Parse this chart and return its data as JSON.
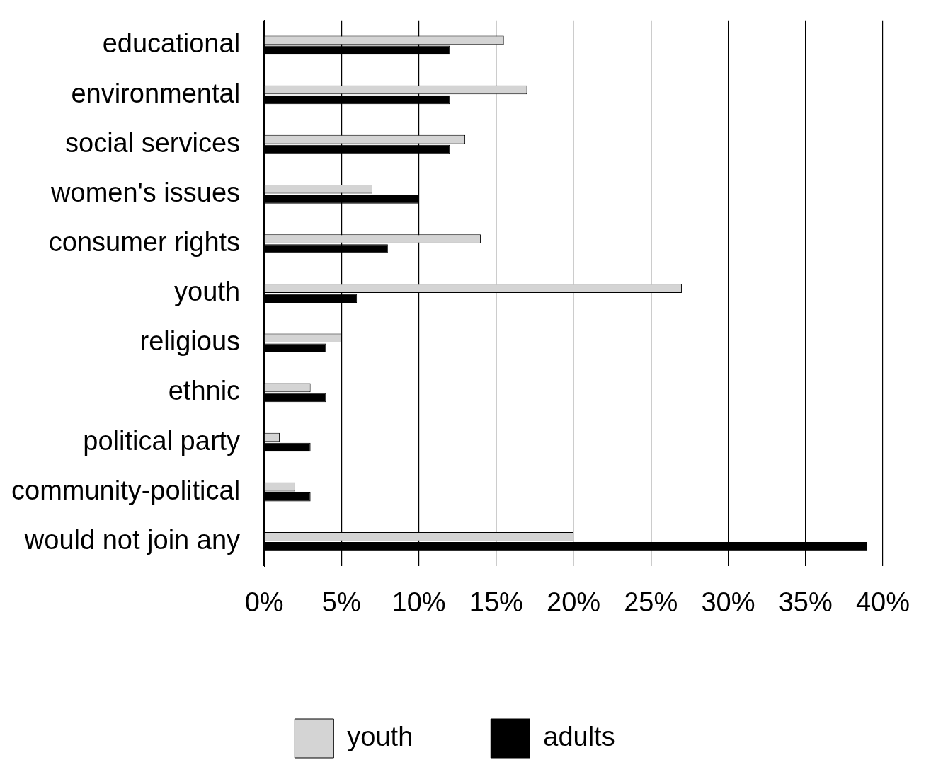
{
  "chart_data": {
    "type": "bar",
    "orientation": "horizontal",
    "categories": [
      "educational",
      "environmental",
      "social services",
      "women's issues",
      "consumer rights",
      "youth",
      "religious",
      "ethnic",
      "political party",
      "community-political",
      "would not join any"
    ],
    "series": [
      {
        "name": "youth",
        "color": "#d4d4d4",
        "values": [
          15.5,
          17,
          13,
          7,
          14,
          27,
          5,
          3,
          1,
          2,
          20
        ]
      },
      {
        "name": "adults",
        "color": "#000000",
        "values": [
          12,
          12,
          12,
          10,
          8,
          6,
          4,
          4,
          3,
          3,
          39
        ]
      }
    ],
    "xlim": [
      0,
      40
    ],
    "xticks": [
      {
        "value": 0,
        "label": "0%"
      },
      {
        "value": 5,
        "label": "5%"
      },
      {
        "value": 10,
        "label": "10%"
      },
      {
        "value": 15,
        "label": "15%"
      },
      {
        "value": 20,
        "label": "20%"
      },
      {
        "value": 25,
        "label": "25%"
      },
      {
        "value": 30,
        "label": "30%"
      },
      {
        "value": 35,
        "label": "35%"
      },
      {
        "value": 40,
        "label": "40%"
      }
    ],
    "grid": "x",
    "legend": "bottom"
  }
}
